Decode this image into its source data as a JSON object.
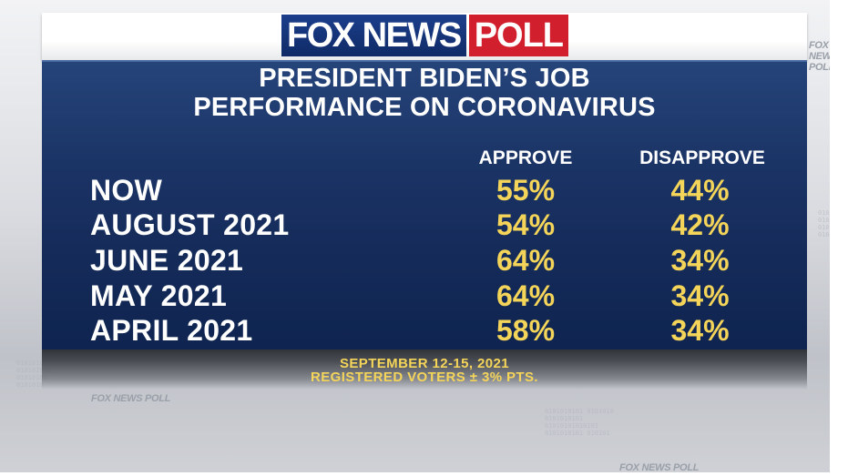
{
  "logo": {
    "brand": "FOX NEWS",
    "product": "POLL"
  },
  "title": {
    "line1": "PRESIDENT BIDEN’S JOB",
    "line2": "PERFORMANCE ON CORONAVIRUS"
  },
  "columns": {
    "approve": "APPROVE",
    "disapprove": "DISAPPROVE"
  },
  "rows": [
    {
      "label": "NOW",
      "approve": "55%",
      "disapprove": "44%"
    },
    {
      "label": "AUGUST 2021",
      "approve": "54%",
      "disapprove": "42%"
    },
    {
      "label": "JUNE 2021",
      "approve": "64%",
      "disapprove": "34%"
    },
    {
      "label": "MAY 2021",
      "approve": "64%",
      "disapprove": "34%"
    },
    {
      "label": "APRIL 2021",
      "approve": "58%",
      "disapprove": "34%"
    }
  ],
  "footer": {
    "line1": "SEPTEMBER 12-15, 2021",
    "line2": "REGISTERED VOTERS ± 3% PTS."
  },
  "background_marks": [
    "FOX NEWS POLL",
    "FOX NEWS POLL",
    "FOX NEWS POLL"
  ],
  "colors": {
    "panel": "#1b3466",
    "value_yellow": "#f4d55a",
    "logo_blue": "#1c3f8c",
    "logo_red": "#d21f2d"
  }
}
